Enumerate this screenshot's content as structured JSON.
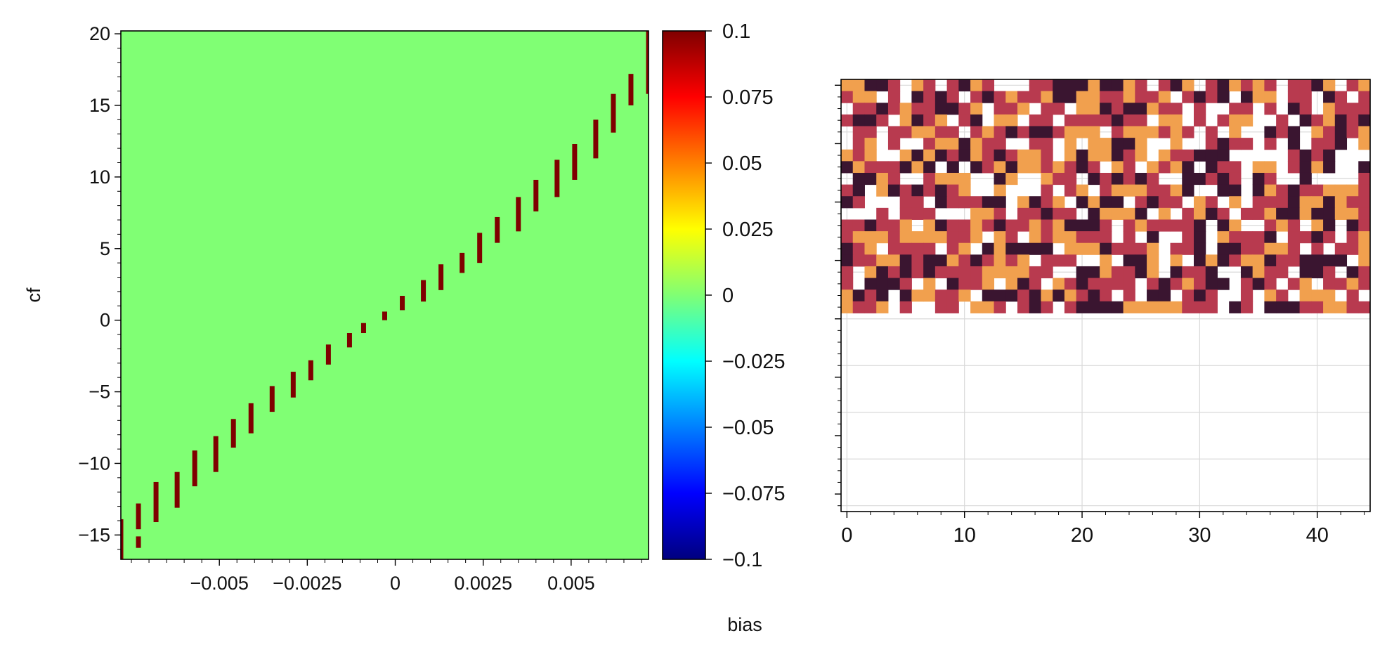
{
  "figure": {
    "xlabel": "bias"
  },
  "chart_data": [
    {
      "type": "heatmap",
      "name": "left-panel",
      "title": "",
      "xlabel": "",
      "ylabel": "cf",
      "xlim": [
        -0.0078,
        0.0072
      ],
      "ylim": [
        -16.7,
        20.2
      ],
      "x_ticks": [
        {
          "value": -0.005,
          "label": "−0.005"
        },
        {
          "value": -0.0025,
          "label": "−0.0025"
        },
        {
          "value": 0,
          "label": "0"
        },
        {
          "value": 0.0025,
          "label": "0.0025"
        },
        {
          "value": 0.005,
          "label": "0.005"
        }
      ],
      "y_ticks": [
        {
          "value": 20,
          "label": "20"
        },
        {
          "value": 15,
          "label": "15"
        },
        {
          "value": 10,
          "label": "10"
        },
        {
          "value": 5,
          "label": "5"
        },
        {
          "value": 0,
          "label": "0"
        },
        {
          "value": -5,
          "label": "−5"
        },
        {
          "value": -10,
          "label": "−10"
        },
        {
          "value": -15,
          "label": "−15"
        }
      ],
      "background_value": 0,
      "background_color": "#80ff74",
      "highlight_color": "#7f0000",
      "diagonal_segments": [
        {
          "x": -0.0078,
          "y0": -16.7,
          "y1": -13.9
        },
        {
          "x": -0.0073,
          "y0": -15.9,
          "y1": -15.1
        },
        {
          "x": -0.0073,
          "y0": -14.6,
          "y1": -12.8
        },
        {
          "x": -0.0068,
          "y0": -14.1,
          "y1": -11.3
        },
        {
          "x": -0.0062,
          "y0": -13.1,
          "y1": -10.6
        },
        {
          "x": -0.0057,
          "y0": -11.6,
          "y1": -9.1
        },
        {
          "x": -0.0051,
          "y0": -10.6,
          "y1": -8.1
        },
        {
          "x": -0.0046,
          "y0": -8.9,
          "y1": -6.9
        },
        {
          "x": -0.0041,
          "y0": -7.9,
          "y1": -5.8
        },
        {
          "x": -0.0035,
          "y0": -6.4,
          "y1": -4.6
        },
        {
          "x": -0.0029,
          "y0": -5.4,
          "y1": -3.6
        },
        {
          "x": -0.0024,
          "y0": -4.2,
          "y1": -2.8
        },
        {
          "x": -0.0019,
          "y0": -3.1,
          "y1": -1.7
        },
        {
          "x": -0.0013,
          "y0": -1.9,
          "y1": -0.9
        },
        {
          "x": -0.0009,
          "y0": -0.9,
          "y1": -0.2
        },
        {
          "x": -0.0003,
          "y0": 0.0,
          "y1": 0.6
        },
        {
          "x": 0.0002,
          "y0": 0.7,
          "y1": 1.7
        },
        {
          "x": 0.0008,
          "y0": 1.3,
          "y1": 2.8
        },
        {
          "x": 0.0013,
          "y0": 2.1,
          "y1": 3.9
        },
        {
          "x": 0.0019,
          "y0": 3.3,
          "y1": 4.7
        },
        {
          "x": 0.0024,
          "y0": 4.0,
          "y1": 6.1
        },
        {
          "x": 0.0029,
          "y0": 5.4,
          "y1": 7.2
        },
        {
          "x": 0.0035,
          "y0": 6.2,
          "y1": 8.6
        },
        {
          "x": 0.004,
          "y0": 7.6,
          "y1": 9.8
        },
        {
          "x": 0.0046,
          "y0": 8.6,
          "y1": 11.2
        },
        {
          "x": 0.0051,
          "y0": 9.8,
          "y1": 12.3
        },
        {
          "x": 0.0057,
          "y0": 11.3,
          "y1": 14.0
        },
        {
          "x": 0.0062,
          "y0": 13.1,
          "y1": 15.8
        },
        {
          "x": 0.0067,
          "y0": 15.0,
          "y1": 17.2
        },
        {
          "x": 0.0072,
          "y0": 15.8,
          "y1": 20.2
        }
      ]
    },
    {
      "type": "colorbar",
      "name": "colorbar",
      "colormap": "jet",
      "range": [
        -0.1,
        0.1
      ],
      "ticks": [
        {
          "value": 0.1,
          "label": "0.1"
        },
        {
          "value": 0.075,
          "label": "0.075"
        },
        {
          "value": 0.05,
          "label": "0.05"
        },
        {
          "value": 0.025,
          "label": "0.025"
        },
        {
          "value": 0,
          "label": "0"
        },
        {
          "value": -0.025,
          "label": "−0.025"
        },
        {
          "value": -0.05,
          "label": "−0.05"
        },
        {
          "value": -0.075,
          "label": "−0.075"
        },
        {
          "value": -0.1,
          "label": "−0.1"
        }
      ]
    },
    {
      "type": "heatmap",
      "name": "right-panel",
      "title": "",
      "xlabel": "",
      "ylabel": "",
      "xlim": [
        -0.5,
        44.5
      ],
      "ylim": [
        -0.5,
        36.5
      ],
      "grid": true,
      "x_ticks": [
        {
          "value": 0,
          "label": "0"
        },
        {
          "value": 10,
          "label": "10"
        },
        {
          "value": 20,
          "label": "20"
        },
        {
          "value": 30,
          "label": "30"
        },
        {
          "value": 40,
          "label": "40"
        }
      ],
      "colors": [
        "#ffffff",
        "#f1a04e",
        "#b83a4f",
        "#3a1530"
      ],
      "rows": [
        "1133201202312000223331331202310231212022310213",
        "2110203232023212213311221221023230311022032022",
        "0223212233210221022011323312202002202032012220",
        "2332013210230110220222232201102021100203213231",
        "0220221122021232332111021112120201003230123213",
        "0210200211312200220101133100100232202030223011",
        "1210013132312321120131132101223330000023230000",
        "3122231303032131121232012012130322011023130030",
        "0331200211100310012203232320033232032003000020",
        "2301323232100100020210211122130033031232211122",
        "3200022032223301321031330232201201022231131222",
        "0002022200011202232203111301021320221331331120",
        "2232210132212322121333202122223031002120130321",
        "2111211112210120121122202030023012223022320210",
        "3210222202103133330111322210223033221120202213",
        "3221132331232121022200103310103132113223333013",
        "2013232322221111220033122310322300312203320323",
        "2033320103221013201232222023212330232021022120",
        "1323031122103332313123202033023200201201110203",
        "1221020022011202320233331111122203203332211220"
      ]
    }
  ]
}
